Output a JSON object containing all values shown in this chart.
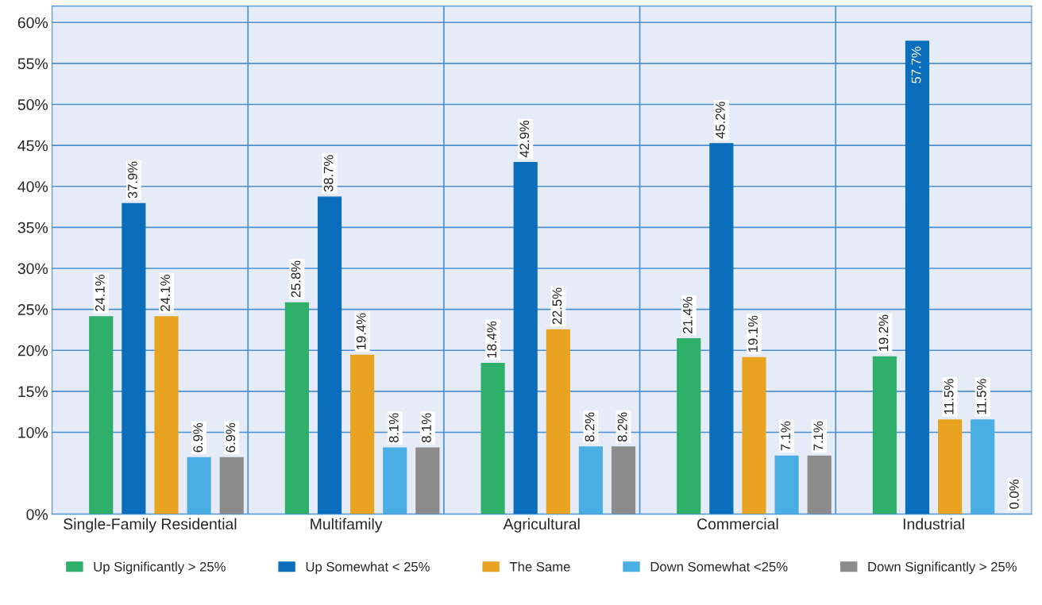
{
  "chart_data": {
    "type": "bar",
    "categories": [
      "Single-Family Residential",
      "Multifamily",
      "Agricultural",
      "Commercial",
      "Industrial"
    ],
    "series": [
      {
        "name": "Up Significantly > 25%",
        "color": "#2eaf6a",
        "values": [
          24.1,
          25.8,
          18.4,
          21.4,
          19.2
        ],
        "value_labels": [
          "24.1%",
          "25.8%",
          "18.4%",
          "21.4%",
          "19.2%"
        ]
      },
      {
        "name": "Up Somewhat < 25%",
        "color": "#0a6ebd",
        "values": [
          37.9,
          38.7,
          42.9,
          45.2,
          57.7
        ],
        "value_labels": [
          "37.9%",
          "38.7%",
          "42.9%",
          "45.2%",
          "57.7%"
        ]
      },
      {
        "name": "The Same",
        "color": "#e8a321",
        "values": [
          24.1,
          19.4,
          22.5,
          19.1,
          11.5
        ],
        "value_labels": [
          "24.1%",
          "19.4%",
          "22.5%",
          "19.1%",
          "11.5%"
        ]
      },
      {
        "name": "Down Somewhat <25%",
        "color": "#4aaee3",
        "values": [
          6.9,
          8.1,
          8.2,
          7.1,
          11.5
        ],
        "value_labels": [
          "6.9%",
          "8.1%",
          "8.2%",
          "7.1%",
          "11.5%"
        ]
      },
      {
        "name": "Down Significantly > 25%",
        "color": "#8c8c8c",
        "values": [
          6.9,
          8.1,
          8.2,
          7.1,
          0.0
        ],
        "value_labels": [
          "6.9%",
          "8.1%",
          "8.2%",
          "7.1%",
          "0.0%"
        ]
      }
    ],
    "ylim": [
      0,
      62
    ],
    "yticks": [
      {
        "value": 0,
        "label": "0%"
      },
      {
        "value": 10,
        "label": "10%"
      },
      {
        "value": 15,
        "label": "15%"
      },
      {
        "value": 20,
        "label": "20%"
      },
      {
        "value": 25,
        "label": "25%"
      },
      {
        "value": 30,
        "label": "30%"
      },
      {
        "value": 35,
        "label": "35%"
      },
      {
        "value": 40,
        "label": "40%"
      },
      {
        "value": 45,
        "label": "45%"
      },
      {
        "value": 50,
        "label": "50%"
      },
      {
        "value": 55,
        "label": "55%"
      },
      {
        "value": 60,
        "label": "60%"
      }
    ],
    "grid": "y",
    "legend": "bottom"
  }
}
